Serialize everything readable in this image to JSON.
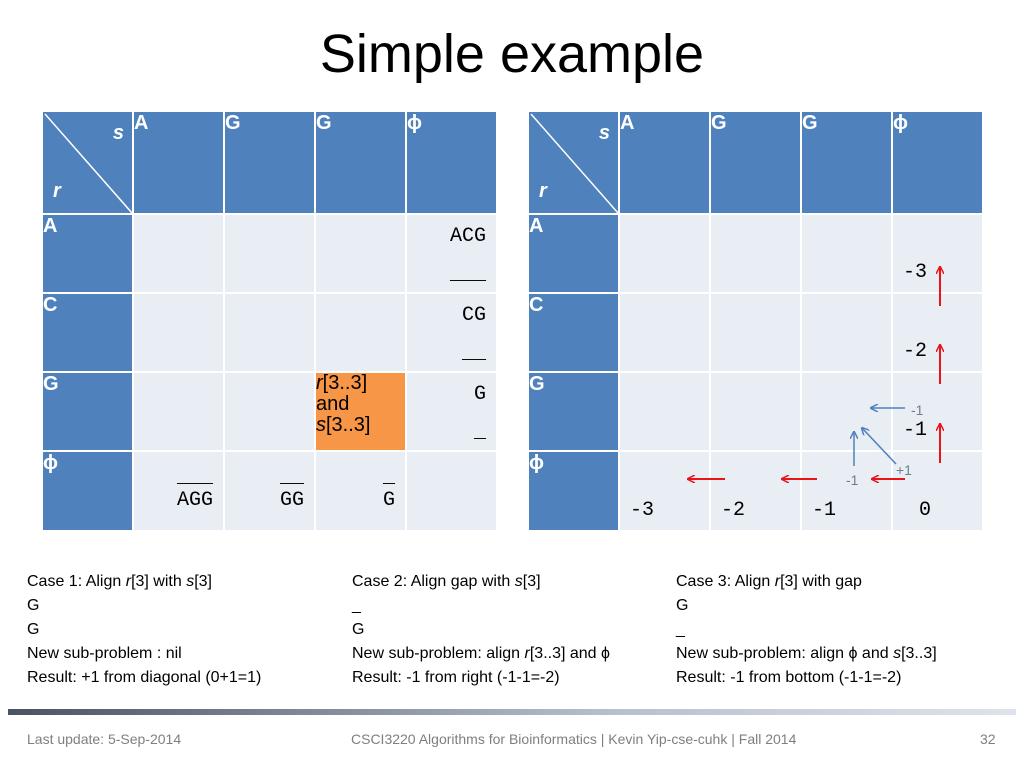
{
  "slide": {
    "title": "Simple example"
  },
  "table_left": {
    "corner_s": "s",
    "corner_r": "r",
    "col_headers": [
      "A",
      "G",
      "G",
      "ϕ"
    ],
    "row_headers": [
      "A",
      "C",
      "G",
      "ϕ"
    ],
    "last_col": [
      {
        "top": "ACG",
        "bottom": "___"
      },
      {
        "top": "CG",
        "bottom": "__"
      },
      {
        "top": "G",
        "bottom": "_"
      }
    ],
    "last_row": [
      {
        "top": "___",
        "bottom": "AGG"
      },
      {
        "top": "__",
        "bottom": "GG"
      },
      {
        "top": "_",
        "bottom": "G"
      }
    ],
    "highlight": {
      "line1_r": "r",
      "line1_rest": "[3..3]",
      "line2": "and",
      "line3_s": "s",
      "line3_rest": "[3..3]"
    }
  },
  "table_right": {
    "corner_s": "s",
    "corner_r": "r",
    "col_headers": [
      "A",
      "G",
      "G",
      "ϕ"
    ],
    "row_headers": [
      "A",
      "C",
      "G",
      "ϕ"
    ],
    "last_col_scores": [
      "-3",
      "-2",
      "-1"
    ],
    "last_row_scores": [
      "-3",
      "-2",
      "-1",
      "0"
    ],
    "annotations": {
      "left_arrow_label": "-1",
      "up_arrow_label": "-1",
      "diag_arrow_label": "+1"
    }
  },
  "cases": [
    {
      "heading_a": "Case 1: Align ",
      "heading_r": "r",
      "heading_b": "[3] with ",
      "heading_s": "s",
      "heading_c": "[3]",
      "line1": "G",
      "line2": "G",
      "subproblem": "New sub-problem : nil",
      "result": "Result: +1 from diagonal (0+1=1)"
    },
    {
      "heading_a": "Case 2: Align gap with ",
      "heading_s": "s",
      "heading_b": "[3]",
      "line1": "_",
      "line2": "G",
      "sub_a": "New sub-problem: align ",
      "sub_r": "r",
      "sub_b": "[3..3] and ϕ",
      "result": "Result: -1 from right (-1-1=-2)"
    },
    {
      "heading_a": "Case 3: Align ",
      "heading_r": "r",
      "heading_b": "[3] with gap",
      "line1": "G",
      "line2": "_",
      "sub_a": "New sub-problem: align ϕ and ",
      "sub_s": "s",
      "sub_b": "[3..3]",
      "result": "Result: -1 from bottom (-1-1=-2)"
    }
  ],
  "footer": {
    "left": "Last update: 5-Sep-2014",
    "center": "CSCI3220 Algorithms for Bioinformatics |  Kevin Yip-cse-cuhk | Fall 2014",
    "page": "32"
  },
  "colors": {
    "header": "#4f81bd",
    "cell": "#e9edf4",
    "highlight": "#f79646",
    "arrow_red": "#e8141a",
    "arrow_blue": "#4f81bd"
  }
}
